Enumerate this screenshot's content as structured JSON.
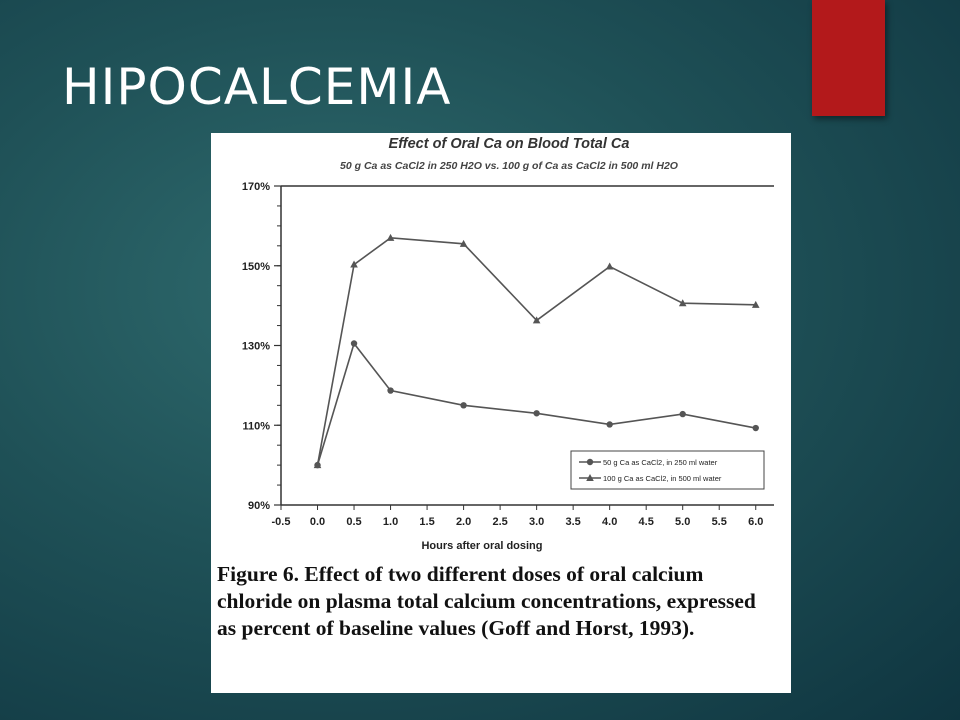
{
  "slide": {
    "title": "HIPOCALCEMIA",
    "accent_color": "#b3191b"
  },
  "figure": {
    "caption": "Figure 6. Effect of two different doses of oral calcium chloride on plasma total calcium concentrations, expressed as percent of baseline values (Goff and Horst, 1993)."
  },
  "chart_data": {
    "type": "line",
    "title": "Effect of Oral Ca on Blood Total Ca",
    "subtitle": "50 g Ca as CaCl2 in 250 H2O vs. 100 g of Ca as CaCl2 in 500 ml H2O",
    "xlabel": "Hours after oral dosing",
    "ylabel": "",
    "xlim": [
      -0.5,
      6.25
    ],
    "ylim": [
      90,
      170
    ],
    "x_ticks": [
      "-0.5",
      "0.0",
      "0.5",
      "1.0",
      "1.5",
      "2.0",
      "2.5",
      "3.0",
      "3.5",
      "4.0",
      "4.5",
      "5.0",
      "5.5",
      "6.0"
    ],
    "y_ticks": [
      {
        "value": 90,
        "label": "90%"
      },
      {
        "value": 110,
        "label": "110%"
      },
      {
        "value": 130,
        "label": "130%"
      },
      {
        "value": 150,
        "label": "150%"
      },
      {
        "value": 170,
        "label": "170%"
      }
    ],
    "grid": false,
    "legend_position": "bottom-right",
    "series": [
      {
        "name": "50 g Ca as CaCl2, in 250 ml water",
        "marker": "circle",
        "color": "#555555",
        "x": [
          0,
          0.5,
          1,
          2,
          3,
          4,
          5,
          6
        ],
        "y": [
          100,
          130.5,
          118.7,
          115,
          113,
          110.2,
          112.8,
          109.3
        ]
      },
      {
        "name": "100 g Ca as CaCl2, in 500 ml water",
        "marker": "triangle",
        "color": "#555555",
        "x": [
          0,
          0.5,
          1,
          2,
          3,
          4,
          5,
          6
        ],
        "y": [
          100,
          150.3,
          157,
          155.5,
          136.3,
          149.8,
          140.6,
          140.2
        ]
      }
    ]
  }
}
